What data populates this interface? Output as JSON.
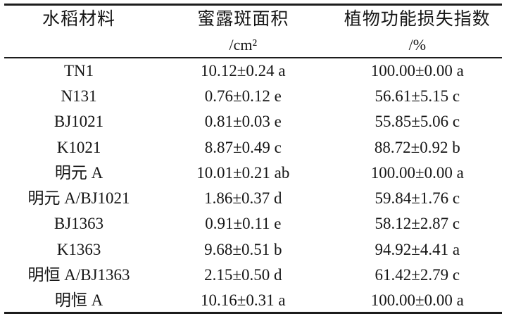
{
  "table": {
    "columns": [
      {
        "label": "水稻材料",
        "unit": ""
      },
      {
        "label": "蜜露斑面积",
        "unit": "/cm²"
      },
      {
        "label": "植物功能损失指数",
        "unit": "/%"
      }
    ],
    "rows": [
      [
        "TN1",
        "10.12±0.24 a",
        "100.00±0.00 a"
      ],
      [
        "N131",
        "0.76±0.12 e",
        "56.61±5.15 c"
      ],
      [
        "BJ1021",
        "0.81±0.03 e",
        "55.85±5.06 c"
      ],
      [
        "K1021",
        "8.87±0.49 c",
        "88.72±0.92 b"
      ],
      [
        "明元 A",
        "10.01±0.21 ab",
        "100.00±0.00 a"
      ],
      [
        "明元 A/BJ1021",
        "1.86±0.37 d",
        "59.84±1.76 c"
      ],
      [
        "BJ1363",
        "0.91±0.11 e",
        "58.12±2.87 c"
      ],
      [
        "K1363",
        "9.68±0.51 b",
        "94.92±4.41 a"
      ],
      [
        "明恒 A/BJ1363",
        "2.15±0.50 d",
        "61.42±2.79 c"
      ],
      [
        "明恒 A",
        "10.16±0.31 a",
        "100.00±0.00 a"
      ]
    ],
    "cell_names": [
      "rice-material-cell",
      "honeydew-area-cell",
      "loss-index-cell"
    ]
  },
  "colors": {
    "text": "#161616",
    "rule": "#1c1c1c",
    "background": "#ffffff"
  }
}
